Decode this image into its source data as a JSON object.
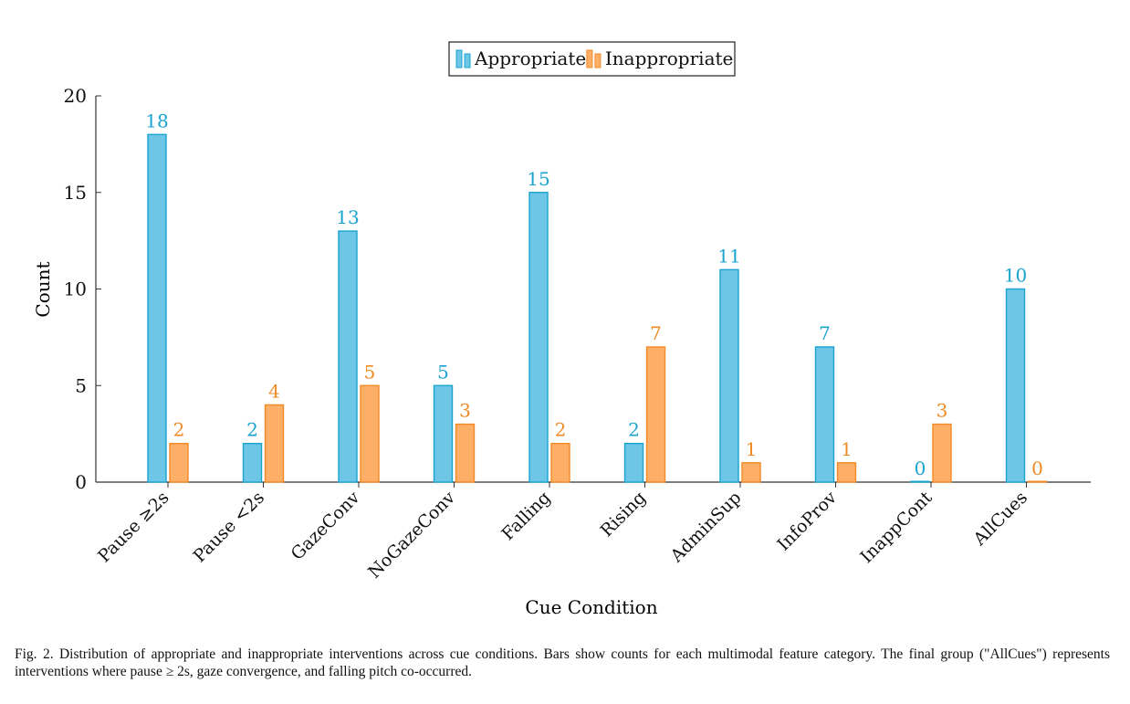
{
  "chart_data": {
    "type": "bar",
    "categories": [
      "Pause ≥2s",
      "Pause <2s",
      "GazeConv",
      "NoGazeConv",
      "Falling",
      "Rising",
      "AdminSup",
      "InfoProv",
      "InappCont",
      "AllCues"
    ],
    "series": [
      {
        "name": "Appropriate",
        "values": [
          18,
          2,
          13,
          5,
          15,
          2,
          11,
          7,
          0,
          10
        ],
        "color": "#6ec6e6",
        "stroke": "#1aa3cf",
        "label_color": "#1aa3cf"
      },
      {
        "name": "Inappropriate",
        "values": [
          2,
          4,
          5,
          3,
          2,
          7,
          1,
          1,
          3,
          0
        ],
        "color": "#fdae67",
        "stroke": "#f28a26",
        "label_color": "#f08a24"
      }
    ],
    "title": "",
    "xlabel": "Cue Condition",
    "ylabel": "Count",
    "ylim": [
      0,
      20
    ],
    "yticks": [
      0,
      5,
      10,
      15,
      20
    ],
    "legend_position": "top-center"
  },
  "caption": "Fig. 2.  Distribution of appropriate and inappropriate interventions across cue conditions. Bars show counts for each multimodal feature category. The final group (\"AllCues\") represents interventions where pause ≥ 2s, gaze convergence, and falling pitch co-occurred."
}
